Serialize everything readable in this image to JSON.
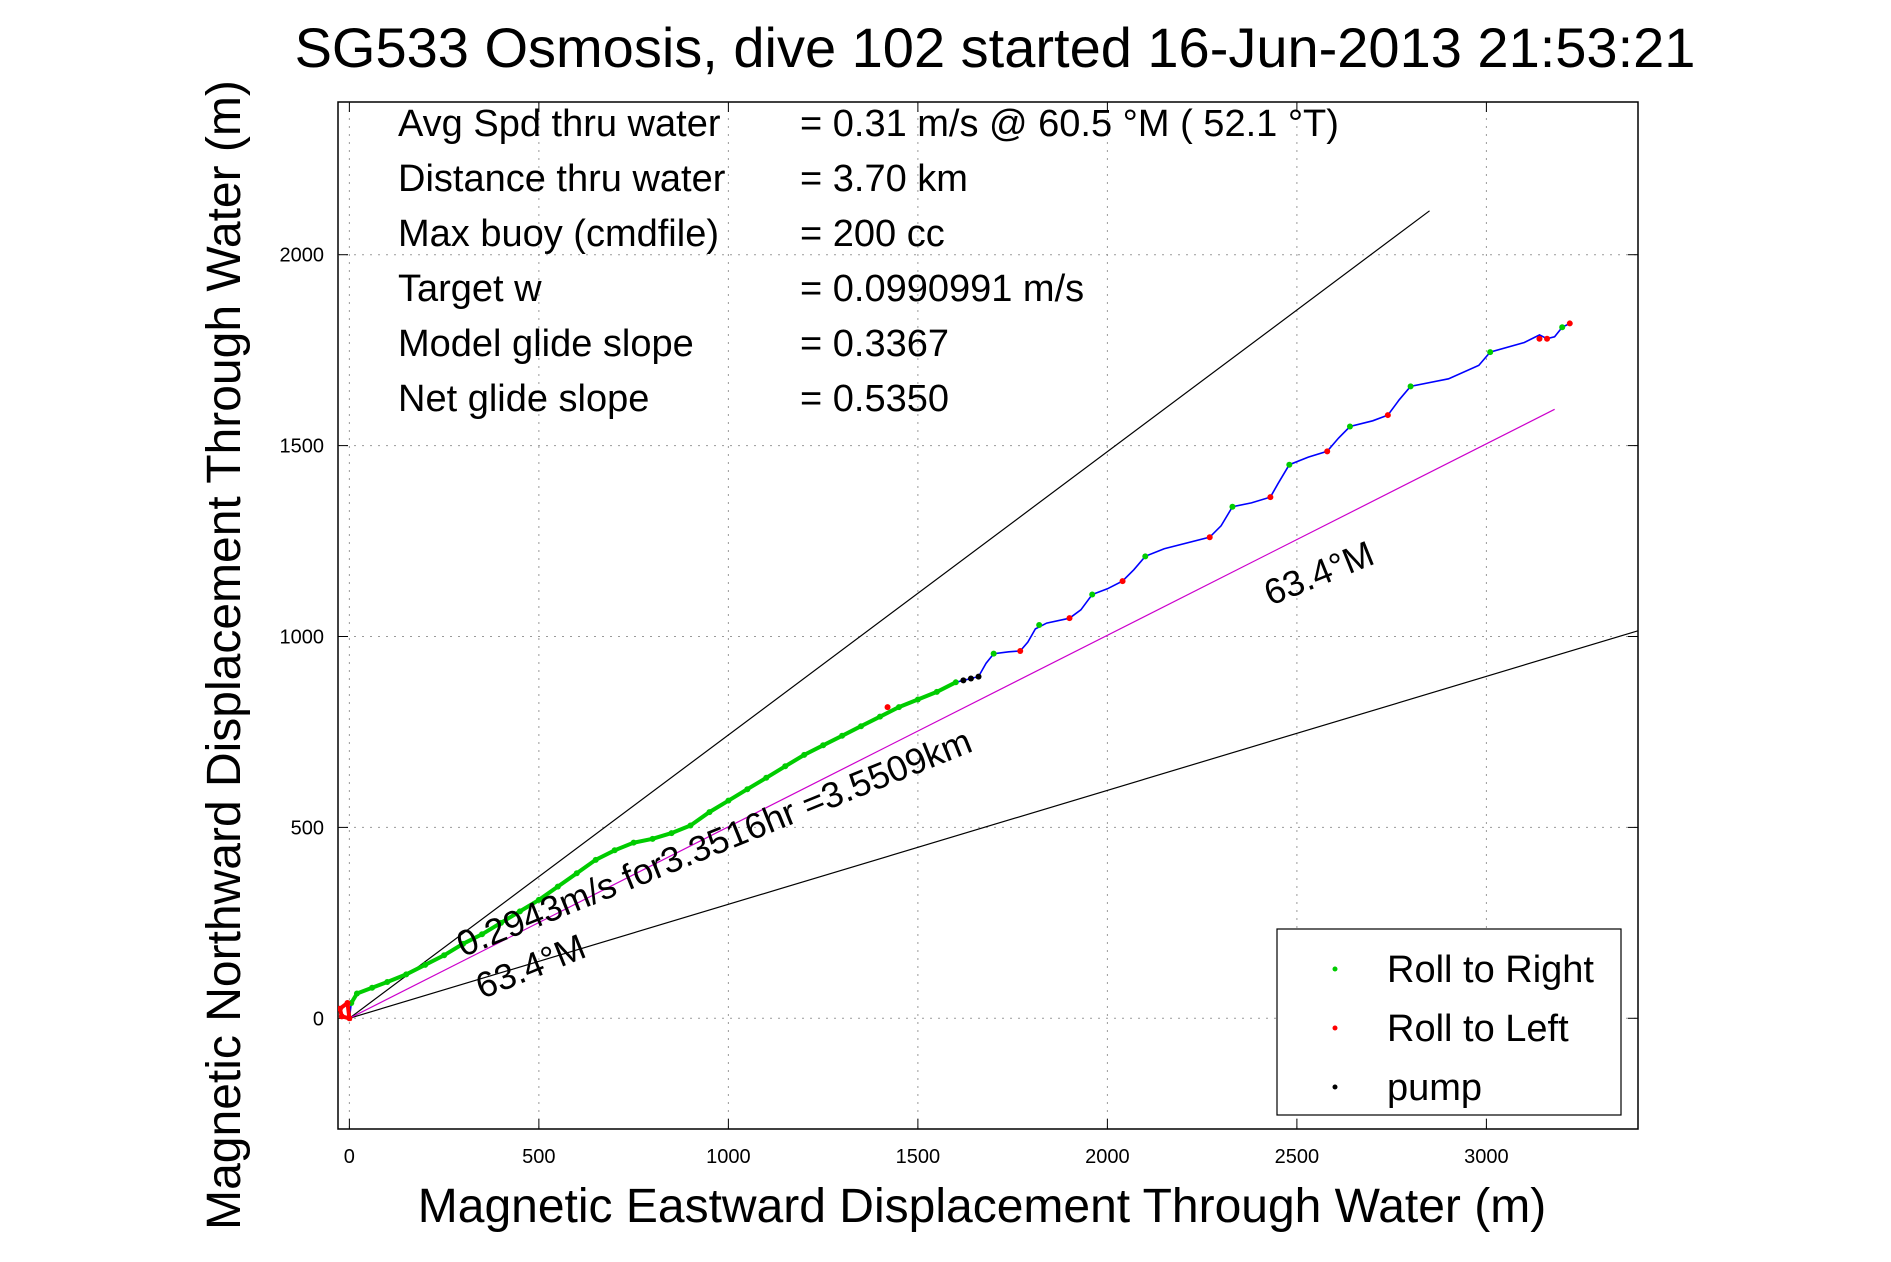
{
  "chart_data": {
    "type": "line",
    "title": "SG533 Osmosis, dive 102 started 16-Jun-2013 21:53:21",
    "xlabel": "Magnetic Eastward Displacement Through Water (m)",
    "ylabel": "Magnetic Northward Displacement Through Water (m)",
    "xlim": [
      -30,
      3400
    ],
    "ylim": [
      -290,
      2400
    ],
    "xticks": [
      0,
      500,
      1000,
      1500,
      2000,
      2500,
      3000
    ],
    "yticks": [
      0,
      500,
      1000,
      1500,
      2000
    ],
    "grid": true,
    "info": [
      {
        "label": "Avg Spd thru water",
        "value": "=  0.31 m/s @  60.5 °M ( 52.1 °T)"
      },
      {
        "label": "Distance thru water",
        "value": "=  3.70 km"
      },
      {
        "label": "Max buoy (cmdfile)",
        "value": "= 200 cc"
      },
      {
        "label": "Target w",
        "value": "= 0.0990991 m/s"
      },
      {
        "label": "Model glide slope",
        "value": "= 0.3367"
      },
      {
        "label": "Net glide slope",
        "value": "= 0.5350"
      }
    ],
    "reference_lines": [
      {
        "name": "upper-bound",
        "color": "#000000",
        "from": [
          0,
          0
        ],
        "to": [
          2850,
          2115
        ]
      },
      {
        "name": "lower-bound",
        "color": "#000000",
        "from": [
          0,
          0
        ],
        "to": [
          3400,
          1015
        ]
      },
      {
        "name": "heading",
        "color": "#cc00cc",
        "from": [
          0,
          0
        ],
        "to": [
          3180,
          1595
        ]
      }
    ],
    "track": {
      "color": "#0000ff",
      "points": [
        [
          -5,
          40
        ],
        [
          -25,
          25
        ],
        [
          -20,
          5
        ],
        [
          0,
          0
        ],
        [
          5,
          40
        ],
        [
          20,
          65
        ],
        [
          60,
          80
        ],
        [
          100,
          95
        ],
        [
          150,
          115
        ],
        [
          200,
          140
        ],
        [
          250,
          165
        ],
        [
          300,
          195
        ],
        [
          350,
          220
        ],
        [
          400,
          250
        ],
        [
          450,
          280
        ],
        [
          500,
          310
        ],
        [
          550,
          345
        ],
        [
          600,
          380
        ],
        [
          650,
          415
        ],
        [
          700,
          440
        ],
        [
          750,
          460
        ],
        [
          800,
          470
        ],
        [
          850,
          485
        ],
        [
          900,
          505
        ],
        [
          950,
          540
        ],
        [
          1000,
          570
        ],
        [
          1050,
          600
        ],
        [
          1100,
          630
        ],
        [
          1150,
          660
        ],
        [
          1200,
          690
        ],
        [
          1250,
          715
        ],
        [
          1300,
          740
        ],
        [
          1350,
          765
        ],
        [
          1400,
          790
        ],
        [
          1450,
          815
        ],
        [
          1500,
          835
        ],
        [
          1550,
          855
        ],
        [
          1600,
          880
        ],
        [
          1640,
          890
        ],
        [
          1660,
          895
        ],
        [
          1680,
          930
        ],
        [
          1700,
          955
        ],
        [
          1740,
          960
        ],
        [
          1770,
          962
        ],
        [
          1790,
          985
        ],
        [
          1810,
          1020
        ],
        [
          1840,
          1035
        ],
        [
          1900,
          1048
        ],
        [
          1930,
          1070
        ],
        [
          1960,
          1110
        ],
        [
          2000,
          1125
        ],
        [
          2040,
          1145
        ],
        [
          2070,
          1175
        ],
        [
          2100,
          1210
        ],
        [
          2150,
          1230
        ],
        [
          2270,
          1260
        ],
        [
          2300,
          1290
        ],
        [
          2330,
          1340
        ],
        [
          2380,
          1350
        ],
        [
          2430,
          1365
        ],
        [
          2450,
          1400
        ],
        [
          2480,
          1450
        ],
        [
          2530,
          1470
        ],
        [
          2580,
          1485
        ],
        [
          2610,
          1520
        ],
        [
          2640,
          1550
        ],
        [
          2700,
          1565
        ],
        [
          2740,
          1580
        ],
        [
          2770,
          1620
        ],
        [
          2800,
          1655
        ],
        [
          2900,
          1675
        ],
        [
          2980,
          1710
        ],
        [
          3010,
          1745
        ],
        [
          3100,
          1770
        ],
        [
          3140,
          1790
        ],
        [
          3160,
          1780
        ],
        [
          3180,
          1785
        ],
        [
          3200,
          1810
        ],
        [
          3220,
          1820
        ]
      ]
    },
    "roll_right": {
      "color": "#00cc00",
      "points": [
        [
          5,
          40
        ],
        [
          20,
          65
        ],
        [
          60,
          80
        ],
        [
          100,
          95
        ],
        [
          150,
          115
        ],
        [
          200,
          140
        ],
        [
          250,
          165
        ],
        [
          300,
          195
        ],
        [
          350,
          220
        ],
        [
          400,
          250
        ],
        [
          450,
          280
        ],
        [
          500,
          310
        ],
        [
          550,
          345
        ],
        [
          600,
          380
        ],
        [
          650,
          415
        ],
        [
          700,
          440
        ],
        [
          750,
          460
        ],
        [
          800,
          470
        ],
        [
          850,
          485
        ],
        [
          900,
          505
        ],
        [
          950,
          540
        ],
        [
          1000,
          570
        ],
        [
          1050,
          600
        ],
        [
          1100,
          630
        ],
        [
          1150,
          660
        ],
        [
          1200,
          690
        ],
        [
          1250,
          715
        ],
        [
          1300,
          740
        ],
        [
          1350,
          765
        ],
        [
          1400,
          790
        ],
        [
          1450,
          815
        ],
        [
          1500,
          835
        ],
        [
          1550,
          855
        ],
        [
          1600,
          880
        ],
        [
          1700,
          955
        ],
        [
          1820,
          1030
        ],
        [
          1960,
          1110
        ],
        [
          2100,
          1210
        ],
        [
          2330,
          1340
        ],
        [
          2480,
          1450
        ],
        [
          2640,
          1550
        ],
        [
          2800,
          1655
        ],
        [
          3010,
          1745
        ],
        [
          3200,
          1810
        ]
      ]
    },
    "roll_left": {
      "color": "#ff0000",
      "points": [
        [
          -5,
          40
        ],
        [
          -25,
          25
        ],
        [
          -20,
          5
        ],
        [
          0,
          0
        ],
        [
          1420,
          815
        ],
        [
          1770,
          962
        ],
        [
          1900,
          1048
        ],
        [
          2040,
          1145
        ],
        [
          2270,
          1260
        ],
        [
          2430,
          1365
        ],
        [
          2580,
          1485
        ],
        [
          2740,
          1580
        ],
        [
          3140,
          1780
        ],
        [
          3160,
          1780
        ],
        [
          3220,
          1820
        ]
      ]
    },
    "pump": {
      "color": "#000000",
      "points": [
        [
          1620,
          885
        ],
        [
          1640,
          890
        ],
        [
          1660,
          895
        ]
      ]
    },
    "annotations": [
      {
        "text": "0.2943m/s for3.3516hr =3.5509km",
        "at": [
          300,
          160
        ],
        "angle_deg": -22
      },
      {
        "text": "63.4°M",
        "at": [
          350,
          50
        ],
        "angle_deg": -22
      },
      {
        "text": "63.4°M",
        "at": [
          2430,
          1080
        ],
        "angle_deg": -22
      }
    ],
    "legend": {
      "position": "bottom-right",
      "entries": [
        {
          "label": "Roll to Right",
          "color": "#00cc00"
        },
        {
          "label": "Roll to Left",
          "color": "#ff0000"
        },
        {
          "label": "pump",
          "color": "#000000"
        }
      ]
    }
  }
}
